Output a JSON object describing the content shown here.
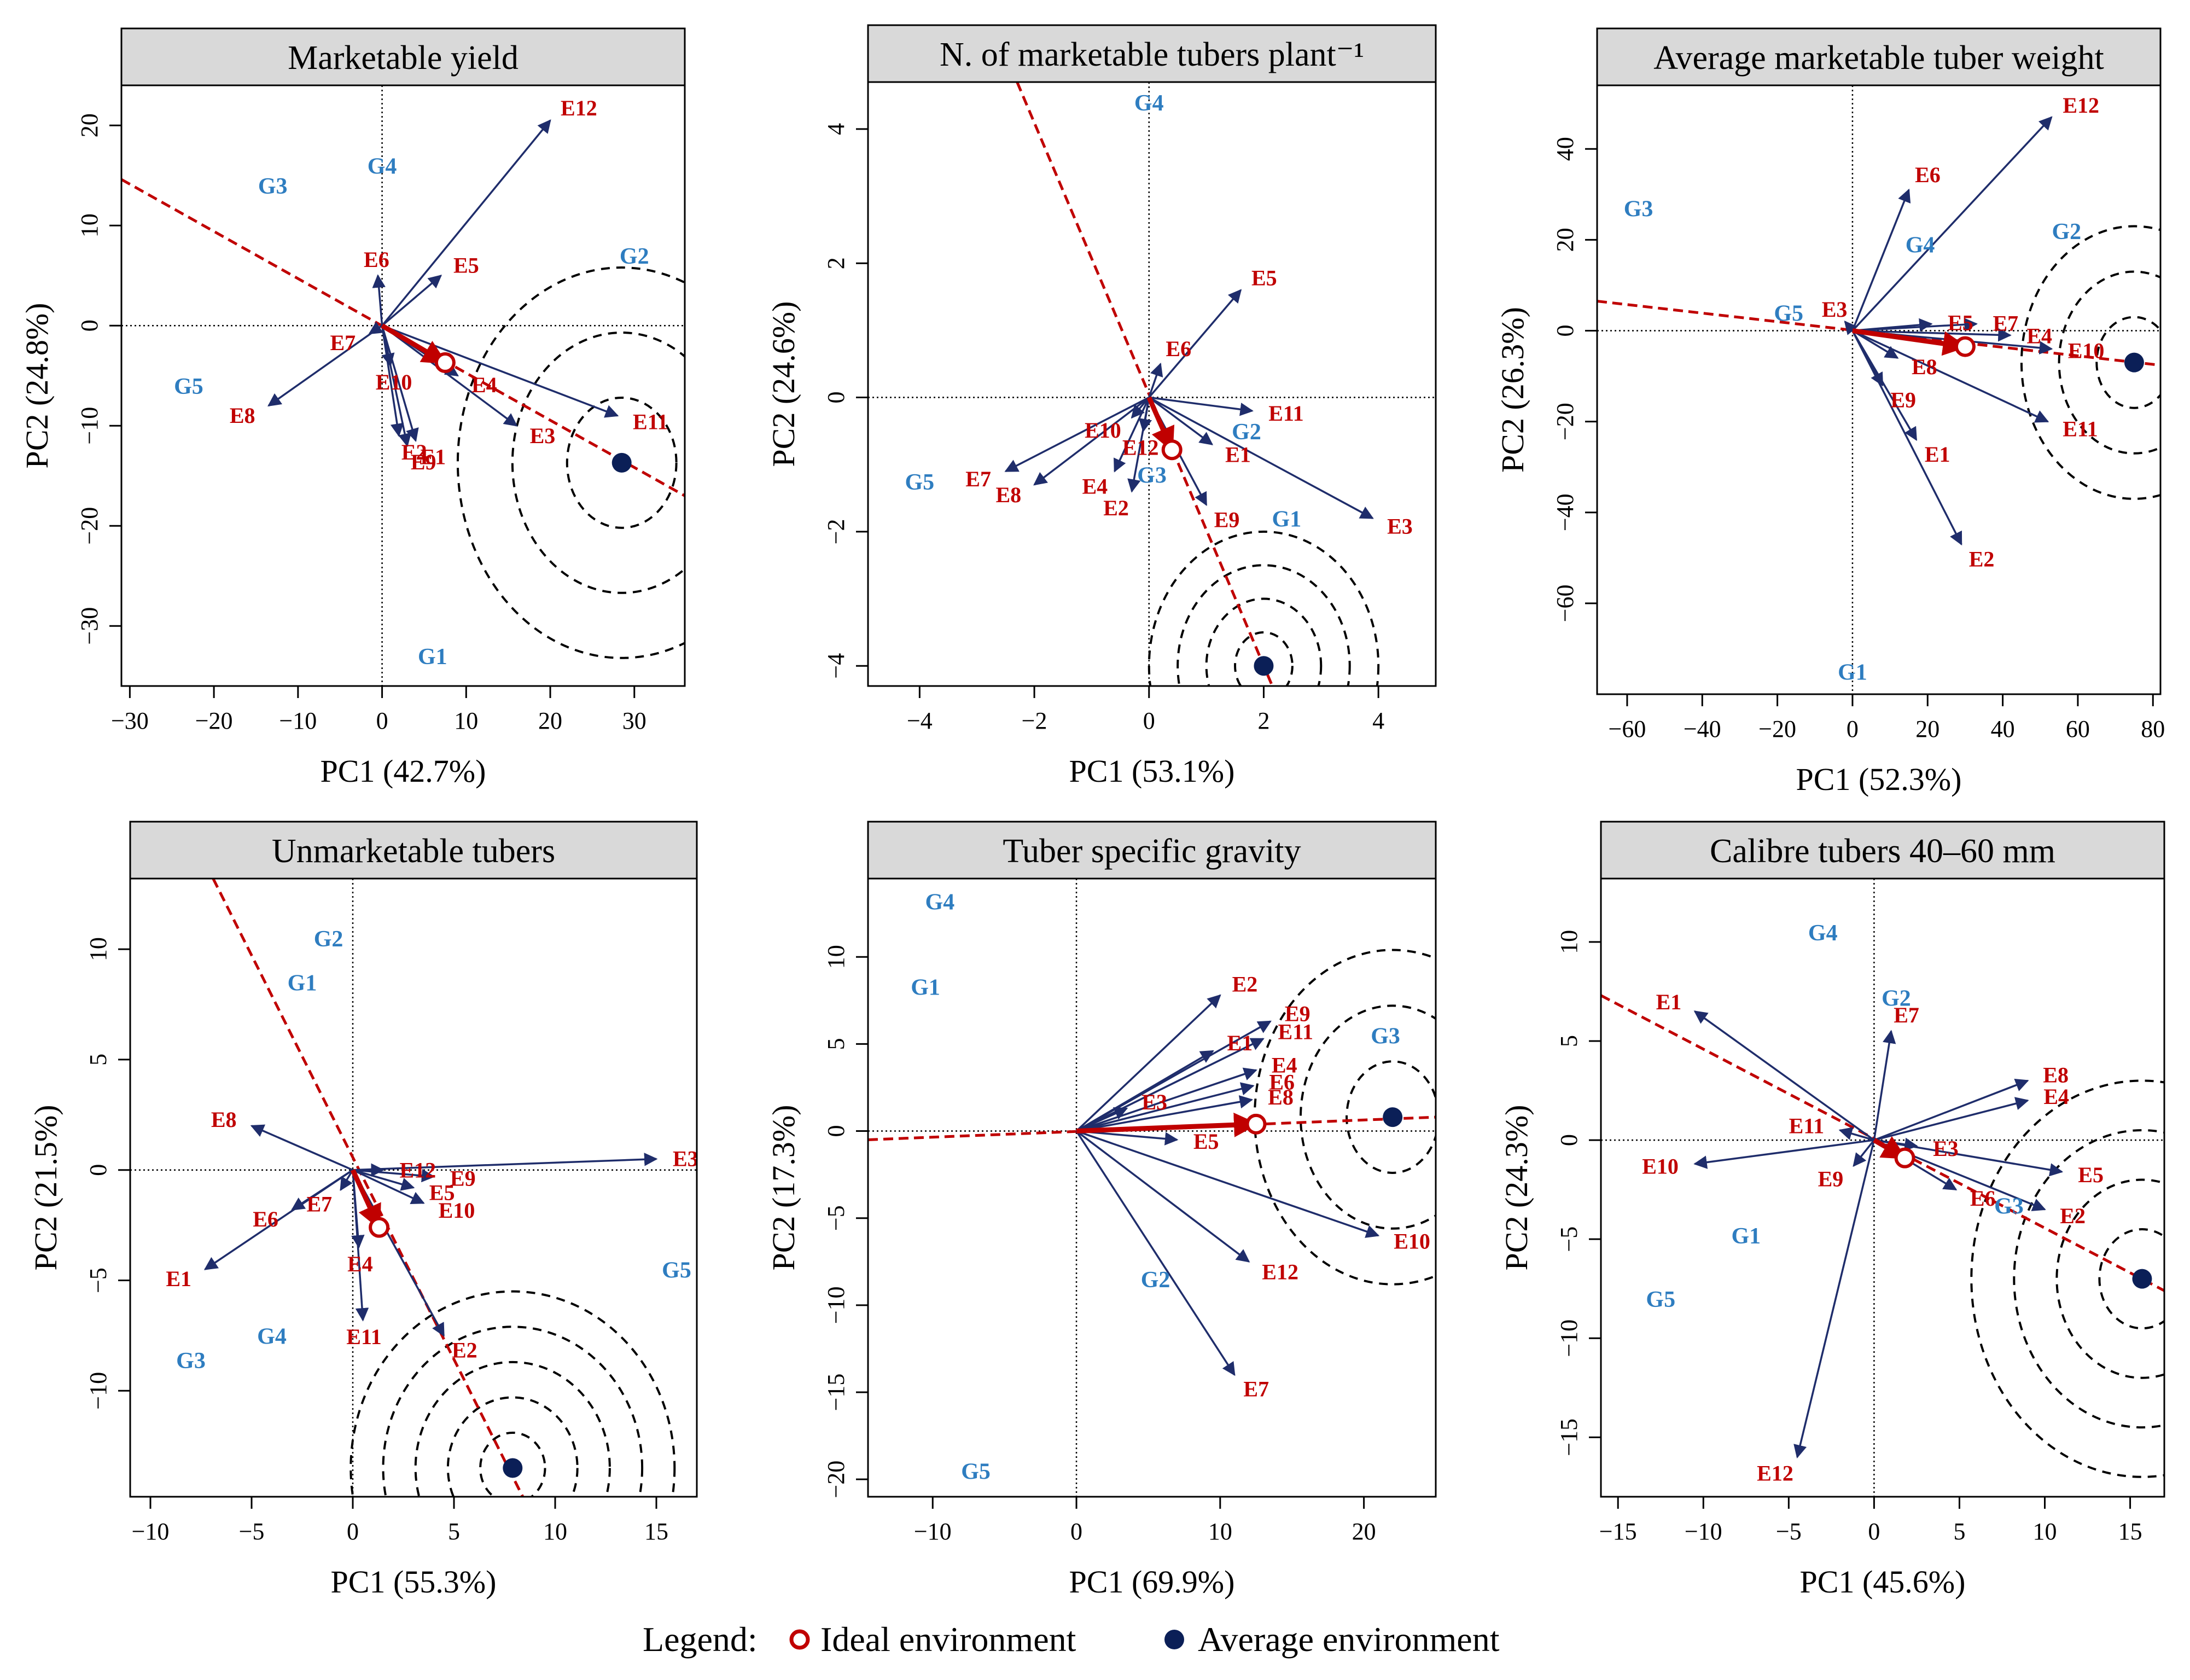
{
  "colors": {
    "env_arrow": "#1f2d6b",
    "env_label": "#c00000",
    "genotype": "#2e7dc0",
    "ideal": "#c00000",
    "average": "#0b1f57",
    "strip_bg": "#d9d9d9"
  },
  "legend": {
    "title": "Legend:",
    "ideal_label": "Ideal environment",
    "average_label": "Average environment"
  },
  "chart_data": [
    {
      "type": "scatter",
      "title": "Marketable yield",
      "xlabel": "PC1 (42.7%)",
      "ylabel": "PC2 (24.8%)",
      "xlim": [
        -31,
        36
      ],
      "ylim": [
        -36,
        24
      ],
      "xticks": [
        -30,
        -20,
        -10,
        0,
        10,
        20,
        30
      ],
      "yticks": [
        -30,
        -20,
        -10,
        0,
        10,
        20
      ],
      "environments": [
        {
          "name": "E12",
          "x": 20,
          "y": 20.5
        },
        {
          "name": "E5",
          "x": 7,
          "y": 5
        },
        {
          "name": "E6",
          "x": -0.5,
          "y": 5
        },
        {
          "name": "E7",
          "x": -1.5,
          "y": -0.8
        },
        {
          "name": "E8",
          "x": -13.5,
          "y": -8
        },
        {
          "name": "E10",
          "x": 1,
          "y": -4
        },
        {
          "name": "E2",
          "x": 2,
          "y": -11
        },
        {
          "name": "E9",
          "x": 3,
          "y": -12
        },
        {
          "name": "E1",
          "x": 4,
          "y": -11.5
        },
        {
          "name": "E4",
          "x": 9,
          "y": -5
        },
        {
          "name": "E3",
          "x": 16,
          "y": -10
        },
        {
          "name": "E11",
          "x": 28,
          "y": -9
        }
      ],
      "genotypes": [
        {
          "name": "G1",
          "x": 6,
          "y": -33
        },
        {
          "name": "G2",
          "x": 30,
          "y": 7
        },
        {
          "name": "G3",
          "x": -13,
          "y": 14
        },
        {
          "name": "G4",
          "x": 0,
          "y": 16
        },
        {
          "name": "G5",
          "x": -23,
          "y": -6
        }
      ],
      "ideal": {
        "x": 7.5,
        "y": -3.7
      },
      "average": {
        "x": 28.5,
        "y": -13.7
      },
      "circle_radii": [
        6.5,
        13,
        19.5
      ],
      "line_ends": [
        [
          -31,
          14.6
        ],
        [
          36,
          -17
        ]
      ]
    },
    {
      "type": "scatter",
      "title": "N. of marketable tubers plant⁻¹",
      "xlabel": "PC1 (53.1%)",
      "ylabel": "PC2 (24.6%)",
      "xlim": [
        -4.9,
        5
      ],
      "ylim": [
        -4.3,
        4.7
      ],
      "xticks": [
        -4,
        -2,
        0,
        2,
        4
      ],
      "yticks": [
        -4,
        -2,
        0,
        2,
        4
      ],
      "environments": [
        {
          "name": "E5",
          "x": 1.6,
          "y": 1.6
        },
        {
          "name": "E6",
          "x": 0.2,
          "y": 0.5
        },
        {
          "name": "E11",
          "x": 1.8,
          "y": -0.2
        },
        {
          "name": "E1",
          "x": 1.1,
          "y": -0.7
        },
        {
          "name": "E9",
          "x": 1,
          "y": -1.6
        },
        {
          "name": "E3",
          "x": 3.9,
          "y": -1.8
        },
        {
          "name": "E10",
          "x": -0.3,
          "y": -0.3
        },
        {
          "name": "E12",
          "x": -0.1,
          "y": -0.5
        },
        {
          "name": "E4",
          "x": -0.6,
          "y": -1.1
        },
        {
          "name": "E2",
          "x": -0.3,
          "y": -1.4
        },
        {
          "name": "E7",
          "x": -2.5,
          "y": -1.1
        },
        {
          "name": "E8",
          "x": -2,
          "y": -1.3
        }
      ],
      "genotypes": [
        {
          "name": "G1",
          "x": 2.4,
          "y": -1.8
        },
        {
          "name": "G2",
          "x": 1.7,
          "y": -0.5
        },
        {
          "name": "G3",
          "x": 0.05,
          "y": -1.15
        },
        {
          "name": "G4",
          "x": 0,
          "y": 4.4
        },
        {
          "name": "G5",
          "x": -4,
          "y": -1.25
        }
      ],
      "ideal": {
        "x": 0.4,
        "y": -0.78
      },
      "average": {
        "x": 2,
        "y": -4
      },
      "circle_radii": [
        0.5,
        1,
        1.5,
        2
      ],
      "line_ends": [
        [
          -2.3,
          4.7
        ],
        [
          2.15,
          -4.3
        ]
      ]
    },
    {
      "type": "scatter",
      "title": "Average marketable tuber weight",
      "xlabel": "PC1 (52.3%)",
      "ylabel": "PC2 (26.3%)",
      "xlim": [
        -68,
        82
      ],
      "ylim": [
        -80,
        54
      ],
      "xticks": [
        -60,
        -40,
        -20,
        0,
        20,
        40,
        60,
        80
      ],
      "yticks": [
        -60,
        -40,
        -20,
        0,
        20,
        40
      ],
      "environments": [
        {
          "name": "E12",
          "x": 53,
          "y": 47
        },
        {
          "name": "E6",
          "x": 15,
          "y": 31
        },
        {
          "name": "E3",
          "x": -2,
          "y": 2
        },
        {
          "name": "E5",
          "x": 21,
          "y": 1.5
        },
        {
          "name": "E7",
          "x": 33,
          "y": 1.5
        },
        {
          "name": "E4",
          "x": 42,
          "y": -1
        },
        {
          "name": "E10",
          "x": 53,
          "y": -4
        },
        {
          "name": "E8",
          "x": 12,
          "y": -6
        },
        {
          "name": "E9",
          "x": 8,
          "y": -12
        },
        {
          "name": "E11",
          "x": 52,
          "y": -20
        },
        {
          "name": "E1",
          "x": 17,
          "y": -24
        },
        {
          "name": "E2",
          "x": 29,
          "y": -47
        }
      ],
      "genotypes": [
        {
          "name": "G1",
          "x": 0,
          "y": -75
        },
        {
          "name": "G2",
          "x": 57,
          "y": 22
        },
        {
          "name": "G3",
          "x": -57,
          "y": 27
        },
        {
          "name": "G4",
          "x": 18,
          "y": 19
        },
        {
          "name": "G5",
          "x": -17,
          "y": 4
        }
      ],
      "ideal": {
        "x": 30,
        "y": -3.5
      },
      "average": {
        "x": 75,
        "y": -7
      },
      "circle_radii": [
        10,
        20,
        30
      ],
      "line_ends": [
        [
          -68,
          6.5
        ],
        [
          82,
          -7.6
        ]
      ]
    },
    {
      "type": "scatter",
      "title": "Unmarketable tubers",
      "xlabel": "PC1 (55.3%)",
      "ylabel": "PC2 (21.5%)",
      "xlim": [
        -11,
        17
      ],
      "ylim": [
        -14.8,
        13.2
      ],
      "xticks": [
        -10,
        -5,
        0,
        5,
        10,
        15
      ],
      "yticks": [
        -10,
        -5,
        0,
        5,
        10
      ],
      "environments": [
        {
          "name": "E3",
          "x": 15,
          "y": 0.5
        },
        {
          "name": "E8",
          "x": -5,
          "y": 2
        },
        {
          "name": "E12",
          "x": 1.5,
          "y": 0
        },
        {
          "name": "E9",
          "x": 4,
          "y": -0.3
        },
        {
          "name": "E5",
          "x": 3,
          "y": -0.8
        },
        {
          "name": "E10",
          "x": 3.5,
          "y": -1.5
        },
        {
          "name": "E6",
          "x": -3,
          "y": -1.8
        },
        {
          "name": "E7",
          "x": -0.6,
          "y": -0.9
        },
        {
          "name": "E4",
          "x": 0.3,
          "y": -3.5
        },
        {
          "name": "E1",
          "x": -7.3,
          "y": -4.5
        },
        {
          "name": "E11",
          "x": 0.5,
          "y": -6.8
        },
        {
          "name": "E2",
          "x": 4.5,
          "y": -7.5
        }
      ],
      "genotypes": [
        {
          "name": "G1",
          "x": -2.5,
          "y": 8.5
        },
        {
          "name": "G2",
          "x": -1.2,
          "y": 10.5
        },
        {
          "name": "G3",
          "x": -8,
          "y": -8.6
        },
        {
          "name": "G4",
          "x": -4,
          "y": -7.5
        },
        {
          "name": "G5",
          "x": 16,
          "y": -4.5
        }
      ],
      "ideal": {
        "x": 1.3,
        "y": -2.6
      },
      "average": {
        "x": 7.9,
        "y": -13.5
      },
      "circle_radii": [
        1.6,
        3.2,
        4.8,
        6.4,
        8
      ],
      "line_ends": [
        [
          -6.9,
          13.2
        ],
        [
          8.4,
          -14.8
        ]
      ]
    },
    {
      "type": "scatter",
      "title": "Tuber specific gravity",
      "xlabel": "PC1 (69.9%)",
      "ylabel": "PC2 (17.3%)",
      "xlim": [
        -14.5,
        25
      ],
      "ylim": [
        -21,
        14.5
      ],
      "xticks": [
        -10,
        0,
        10,
        20
      ],
      "yticks": [
        -20,
        -15,
        -10,
        -5,
        0,
        5,
        10
      ],
      "environments": [
        {
          "name": "E2",
          "x": 10,
          "y": 7.8
        },
        {
          "name": "E9",
          "x": 13.5,
          "y": 6.3
        },
        {
          "name": "E11",
          "x": 13,
          "y": 5.3
        },
        {
          "name": "E1",
          "x": 9.5,
          "y": 4.6
        },
        {
          "name": "E4",
          "x": 12.5,
          "y": 3.5
        },
        {
          "name": "E6",
          "x": 12.3,
          "y": 2.6
        },
        {
          "name": "E8",
          "x": 12.2,
          "y": 1.8
        },
        {
          "name": "E3",
          "x": 3.5,
          "y": 1.3
        },
        {
          "name": "E5",
          "x": 7,
          "y": -0.5
        },
        {
          "name": "E10",
          "x": 21,
          "y": -6
        },
        {
          "name": "E12",
          "x": 12,
          "y": -7.5
        },
        {
          "name": "E7",
          "x": 11,
          "y": -14
        }
      ],
      "genotypes": [
        {
          "name": "G1",
          "x": -10.5,
          "y": 8.3
        },
        {
          "name": "G2",
          "x": 5.5,
          "y": -8.5
        },
        {
          "name": "G3",
          "x": 21.5,
          "y": 5.5
        },
        {
          "name": "G4",
          "x": -9.5,
          "y": 13.2
        },
        {
          "name": "G5",
          "x": -7,
          "y": -19.5
        }
      ],
      "ideal": {
        "x": 12.5,
        "y": 0.4
      },
      "average": {
        "x": 22,
        "y": 0.8
      },
      "circle_radii": [
        3.2,
        6.4,
        9.6
      ],
      "line_ends": [
        [
          -14.5,
          -0.5
        ],
        [
          25,
          0.8
        ]
      ]
    },
    {
      "type": "scatter",
      "title": "Calibre tubers 40–60 mm",
      "xlabel": "PC1 (45.6%)",
      "ylabel": "PC2 (24.3%)",
      "xlim": [
        -16,
        17
      ],
      "ylim": [
        -18,
        13.2
      ],
      "xticks": [
        -15,
        -10,
        -5,
        0,
        5,
        10,
        15
      ],
      "yticks": [
        -15,
        -10,
        -5,
        0,
        5,
        10
      ],
      "environments": [
        {
          "name": "E1",
          "x": -10.5,
          "y": 6.5
        },
        {
          "name": "E7",
          "x": 1,
          "y": 5.5
        },
        {
          "name": "E8",
          "x": 9,
          "y": 3
        },
        {
          "name": "E4",
          "x": 9,
          "y": 2
        },
        {
          "name": "E11",
          "x": -2,
          "y": 0.5
        },
        {
          "name": "E3",
          "x": 2.5,
          "y": -0.3
        },
        {
          "name": "E10",
          "x": -10.5,
          "y": -1.2
        },
        {
          "name": "E9",
          "x": -1.2,
          "y": -1.3
        },
        {
          "name": "E5",
          "x": 11,
          "y": -1.6
        },
        {
          "name": "E6",
          "x": 4.8,
          "y": -2.5
        },
        {
          "name": "E2",
          "x": 10,
          "y": -3.5
        },
        {
          "name": "E12",
          "x": -4.5,
          "y": -16
        }
      ],
      "genotypes": [
        {
          "name": "G1",
          "x": -7.5,
          "y": -4.8
        },
        {
          "name": "G2",
          "x": 1.3,
          "y": 7.2
        },
        {
          "name": "G3",
          "x": 7.9,
          "y": -3.3
        },
        {
          "name": "G4",
          "x": -3,
          "y": 10.5
        },
        {
          "name": "G5",
          "x": -12.5,
          "y": -8
        }
      ],
      "ideal": {
        "x": 1.8,
        "y": -0.9
      },
      "average": {
        "x": 15.7,
        "y": -7
      },
      "circle_radii": [
        2.5,
        5,
        7.5,
        10
      ],
      "line_ends": [
        [
          -16,
          7.3
        ],
        [
          17,
          -7.6
        ]
      ]
    }
  ]
}
